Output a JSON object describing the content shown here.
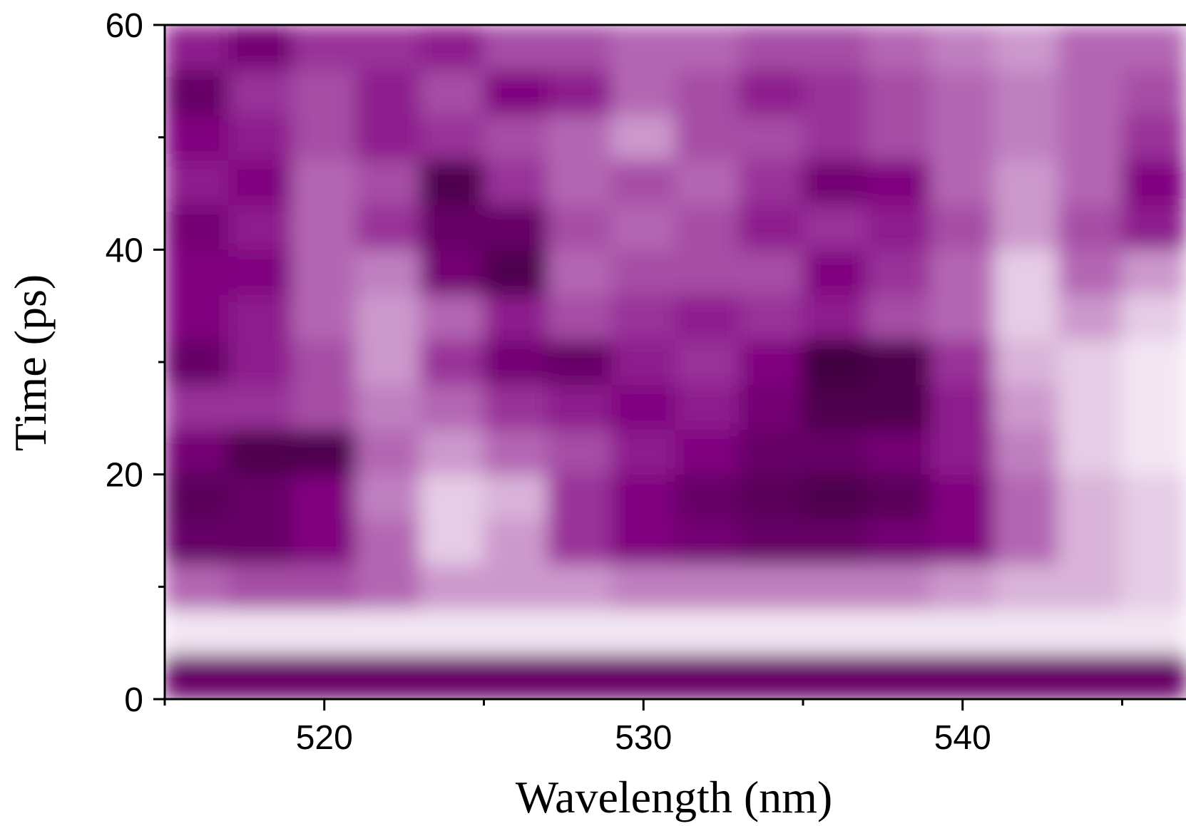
{
  "chart_data": {
    "type": "heatmap",
    "xlabel": "Wavelength (nm)",
    "ylabel": "Time (ps)",
    "xlim": [
      515,
      547
    ],
    "ylim": [
      0,
      60
    ],
    "xticks": [
      520,
      530,
      540
    ],
    "yticks": [
      0,
      20,
      40,
      60
    ],
    "xminorticks": [
      515,
      525,
      535,
      545
    ],
    "yminorticks": [
      10,
      30,
      50
    ],
    "colors": [
      "#ffffff",
      "#800080",
      "#000000"
    ],
    "z": [
      [
        0.6,
        0.6,
        0.6,
        0.6,
        0.6,
        0.6,
        0.6,
        0.6,
        0.6,
        0.6,
        0.6,
        0.6,
        0.6,
        0.6,
        0.6,
        0.6
      ],
      [
        0.05,
        0.05,
        0.05,
        0.05,
        0.05,
        0.05,
        0.05,
        0.05,
        0.05,
        0.05,
        0.05,
        0.05,
        0.05,
        0.05,
        0.05,
        0.05
      ],
      [
        0.3,
        0.35,
        0.35,
        0.3,
        0.2,
        0.2,
        0.2,
        0.25,
        0.25,
        0.25,
        0.25,
        0.25,
        0.2,
        0.15,
        0.15,
        0.1
      ],
      [
        0.6,
        0.6,
        0.5,
        0.3,
        0.1,
        0.2,
        0.4,
        0.5,
        0.55,
        0.6,
        0.6,
        0.55,
        0.5,
        0.3,
        0.15,
        0.1
      ],
      [
        0.65,
        0.6,
        0.5,
        0.25,
        0.1,
        0.15,
        0.4,
        0.5,
        0.6,
        0.65,
        0.7,
        0.65,
        0.5,
        0.3,
        0.15,
        0.1
      ],
      [
        0.55,
        0.7,
        0.7,
        0.3,
        0.2,
        0.3,
        0.35,
        0.45,
        0.5,
        0.6,
        0.6,
        0.55,
        0.45,
        0.25,
        0.1,
        0.05
      ],
      [
        0.4,
        0.4,
        0.35,
        0.25,
        0.3,
        0.4,
        0.45,
        0.5,
        0.45,
        0.55,
        0.7,
        0.7,
        0.45,
        0.2,
        0.1,
        0.05
      ],
      [
        0.6,
        0.45,
        0.35,
        0.2,
        0.4,
        0.55,
        0.6,
        0.45,
        0.4,
        0.5,
        0.75,
        0.7,
        0.4,
        0.15,
        0.1,
        0.05
      ],
      [
        0.5,
        0.45,
        0.3,
        0.2,
        0.3,
        0.45,
        0.35,
        0.4,
        0.45,
        0.4,
        0.45,
        0.35,
        0.3,
        0.1,
        0.2,
        0.1
      ],
      [
        0.5,
        0.5,
        0.3,
        0.25,
        0.55,
        0.7,
        0.3,
        0.35,
        0.35,
        0.35,
        0.5,
        0.4,
        0.3,
        0.1,
        0.3,
        0.2
      ],
      [
        0.55,
        0.45,
        0.3,
        0.4,
        0.6,
        0.6,
        0.35,
        0.3,
        0.35,
        0.45,
        0.4,
        0.45,
        0.35,
        0.2,
        0.35,
        0.45
      ],
      [
        0.45,
        0.5,
        0.3,
        0.35,
        0.7,
        0.4,
        0.3,
        0.35,
        0.3,
        0.4,
        0.55,
        0.5,
        0.3,
        0.2,
        0.3,
        0.5
      ],
      [
        0.5,
        0.45,
        0.35,
        0.45,
        0.4,
        0.35,
        0.3,
        0.2,
        0.35,
        0.35,
        0.4,
        0.35,
        0.3,
        0.25,
        0.3,
        0.4
      ],
      [
        0.6,
        0.4,
        0.35,
        0.45,
        0.35,
        0.5,
        0.45,
        0.3,
        0.35,
        0.45,
        0.4,
        0.35,
        0.3,
        0.25,
        0.3,
        0.35
      ],
      [
        0.45,
        0.55,
        0.4,
        0.4,
        0.45,
        0.35,
        0.35,
        0.3,
        0.3,
        0.35,
        0.35,
        0.3,
        0.25,
        0.2,
        0.3,
        0.3
      ]
    ]
  }
}
